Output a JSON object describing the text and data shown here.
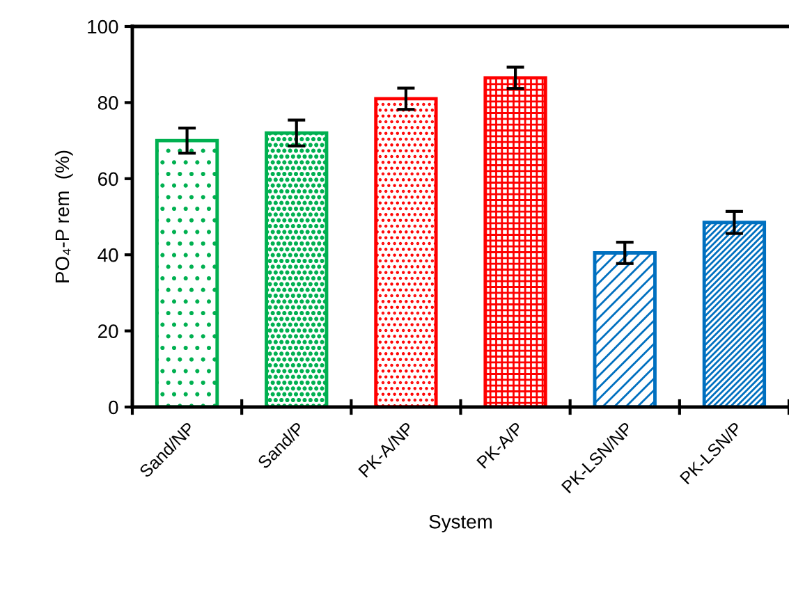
{
  "chart_data": {
    "type": "bar",
    "xlabel": "System",
    "ylabel": "PO₄-P rem  (%)",
    "categories": [
      "Sand/NP",
      "Sand/P",
      "PK-A/NP",
      "PK-A/P",
      "PK-LSN/NP",
      "PK-LSN/P"
    ],
    "values": [
      70,
      72,
      81,
      86.5,
      40.5,
      48.5
    ],
    "errors": [
      3.3,
      3.4,
      2.8,
      2.8,
      2.8,
      2.9
    ],
    "colors": [
      "#00b050",
      "#00b050",
      "#ff0000",
      "#ff0000",
      "#0070c0",
      "#0070c0"
    ],
    "ylim": [
      0,
      100
    ],
    "yticks": [
      0,
      20,
      40,
      60,
      80,
      100
    ],
    "grid": false,
    "legend": false
  }
}
